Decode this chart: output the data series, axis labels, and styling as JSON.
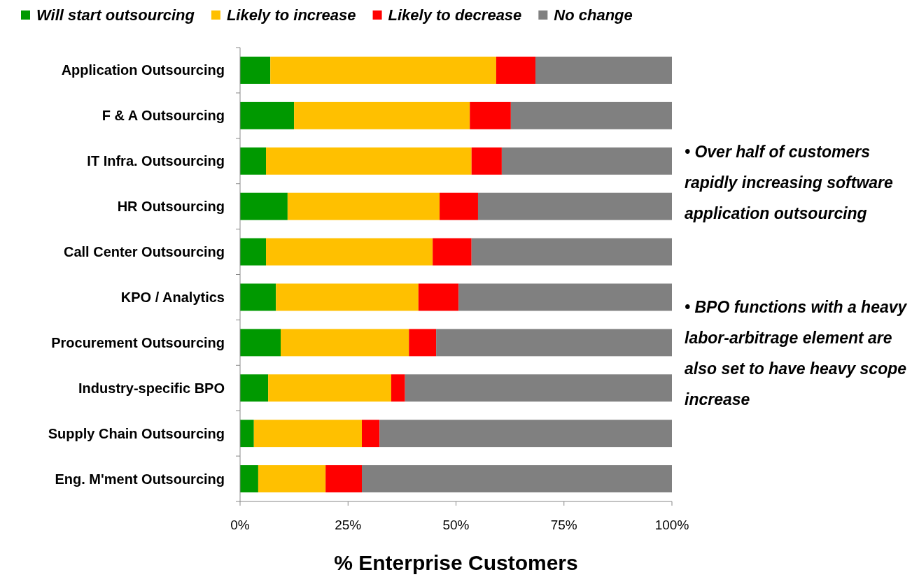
{
  "chart_data": {
    "type": "bar",
    "orientation": "horizontal",
    "stacked": true,
    "legend": "top",
    "xlabel": "% Enterprise Customers",
    "categories": [
      "Application Outsourcing",
      "F & A Outsourcing",
      "IT Infra. Outsourcing",
      "HR Outsourcing",
      "Call Center Outsourcing",
      "KPO / Analytics",
      "Procurement Outsourcing",
      "Industry-specific BPO",
      "Supply Chain Outsourcing",
      "Eng. M'ment Outsourcing"
    ],
    "series": [
      {
        "name": "Will start outsourcing",
        "color": "#009900",
        "values": [
          7,
          12.5,
          6,
          11,
          6,
          8.3,
          9.4,
          6.5,
          3.2,
          4.2
        ]
      },
      {
        "name": "Likely to increase",
        "color": "#ffc000",
        "values": [
          52.3,
          40.7,
          47.6,
          35.2,
          38.6,
          33,
          29.7,
          28.5,
          25,
          15.6
        ]
      },
      {
        "name": "Likely to decrease",
        "color": "#ff0000",
        "values": [
          9.1,
          9.5,
          7,
          8.9,
          9,
          9.3,
          6.3,
          3.2,
          4.1,
          8.4
        ]
      },
      {
        "name": "No change",
        "color": "#808080",
        "values": [
          31.6,
          37.3,
          39.4,
          44.9,
          46.4,
          49.4,
          54.6,
          61.8,
          67.7,
          71.8
        ]
      }
    ],
    "xlim": [
      0,
      100
    ],
    "xticks": [
      {
        "value": 0,
        "label": "0%"
      },
      {
        "value": 25,
        "label": "25%"
      },
      {
        "value": 50,
        "label": "50%"
      },
      {
        "value": 75,
        "label": "75%"
      },
      {
        "value": 100,
        "label": "100%"
      }
    ],
    "annotations": [
      "•  Over half of customers rapidly increasing software application outsourcing",
      "•  BPO functions with a heavy labor-arbitrage element are also set to have heavy scope increase"
    ]
  }
}
